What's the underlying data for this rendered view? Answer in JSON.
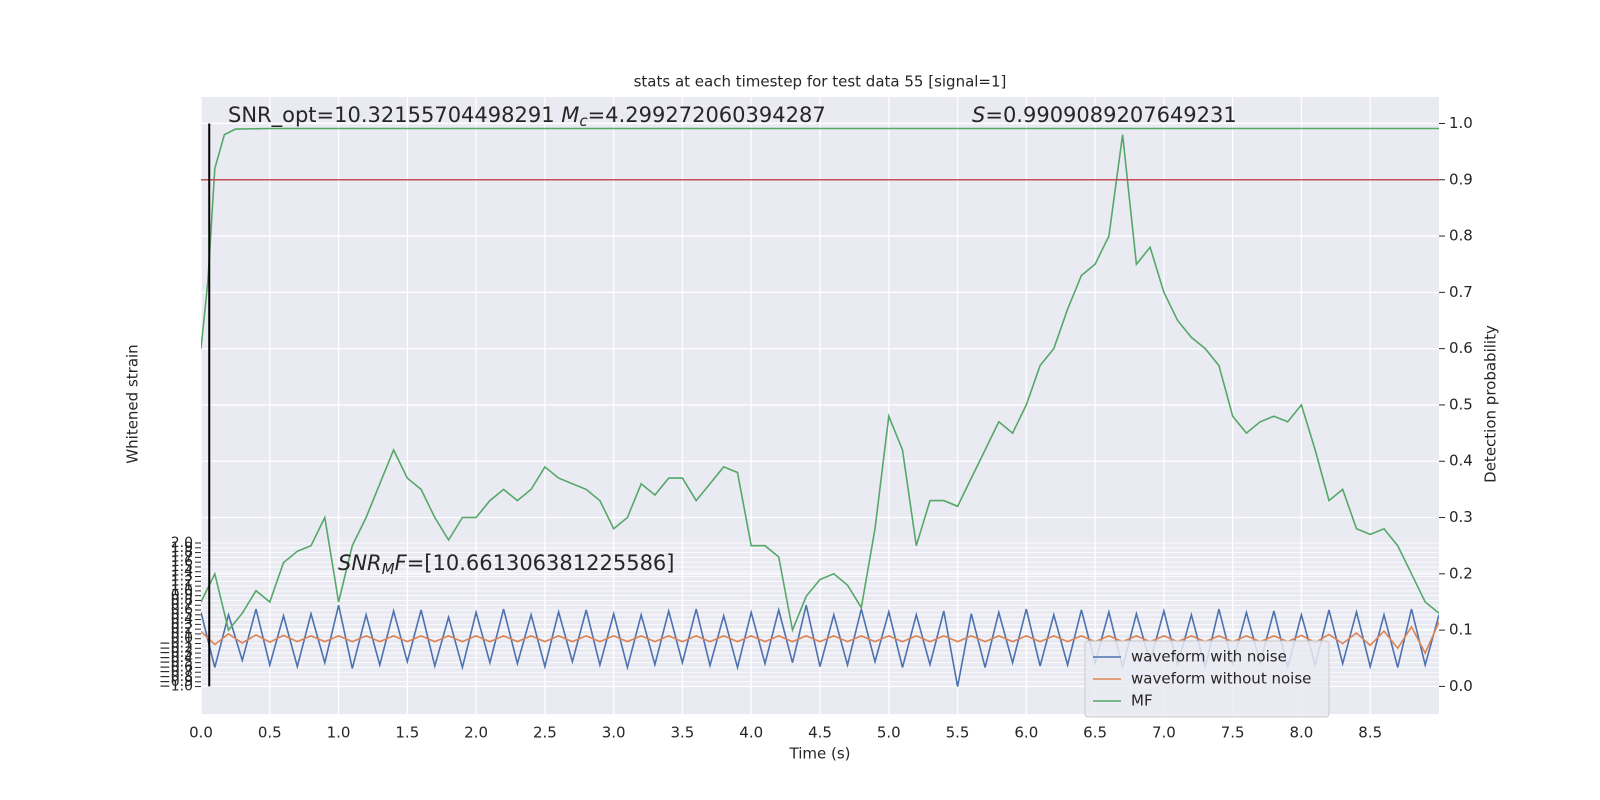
{
  "chart_data": {
    "type": "line",
    "title": "stats at each timestep for test data 55 [signal=1]",
    "xlabel": "Time (s)",
    "ylabel": "Whitened strain",
    "y2label": "Detection probability",
    "annotations": [
      {
        "parts": [
          {
            "text": "SNR_opt=10.32155704498291 "
          },
          {
            "text": "M",
            "style": "italic"
          },
          {
            "text": "c",
            "style": "sub"
          },
          {
            "text": "=4.299272060394287"
          }
        ]
      },
      {
        "parts": [
          {
            "text": "S",
            "style": "italic"
          },
          {
            "text": "=0.9909089207649231"
          }
        ]
      },
      {
        "parts": [
          {
            "text": "SNR",
            "style": "italic"
          },
          {
            "text": "M",
            "style": "sub"
          },
          {
            "text": "F",
            "style": "italic"
          },
          {
            "text": "=[10.661306381225586]"
          }
        ]
      }
    ],
    "x": [
      0.0,
      0.1,
      0.2,
      0.3,
      0.4,
      0.5,
      0.6,
      0.7,
      0.8,
      0.9,
      1.0,
      1.1,
      1.2,
      1.3,
      1.4,
      1.5,
      1.6,
      1.7,
      1.8,
      1.9,
      2.0,
      2.1,
      2.2,
      2.3,
      2.4,
      2.5,
      2.6,
      2.7,
      2.8,
      2.9,
      3.0,
      3.1,
      3.2,
      3.3,
      3.4,
      3.5,
      3.6,
      3.7,
      3.8,
      3.9,
      4.0,
      4.1,
      4.2,
      4.3,
      4.4,
      4.5,
      4.6,
      4.7,
      4.8,
      4.9,
      5.0,
      5.1,
      5.2,
      5.3,
      5.4,
      5.5,
      5.6,
      5.7,
      5.8,
      5.9,
      6.0,
      6.1,
      6.2,
      6.3,
      6.4,
      6.5,
      6.6,
      6.7,
      6.8,
      6.9,
      7.0,
      7.1,
      7.2,
      7.3,
      7.4,
      7.5,
      7.6,
      7.7,
      7.8,
      7.9,
      8.0,
      8.1,
      8.2,
      8.3,
      8.4,
      8.5,
      8.6,
      8.7,
      8.8,
      8.9,
      9.0
    ],
    "series": [
      {
        "name": "waveform with noise",
        "color": "#4c72b0",
        "values": [
          0.55,
          -0.6,
          0.5,
          -0.45,
          0.62,
          -0.55,
          0.48,
          -0.58,
          0.52,
          -0.5,
          0.7,
          -0.62,
          0.5,
          -0.55,
          0.58,
          -0.48,
          0.6,
          -0.57,
          0.45,
          -0.6,
          0.55,
          -0.5,
          0.62,
          -0.52,
          0.5,
          -0.58,
          0.56,
          -0.48,
          0.6,
          -0.55,
          0.52,
          -0.6,
          0.5,
          -0.54,
          0.58,
          -0.5,
          0.62,
          -0.56,
          0.48,
          -0.6,
          0.55,
          -0.52,
          0.6,
          -0.5,
          0.7,
          -0.58,
          0.5,
          -0.55,
          0.62,
          -0.48,
          0.56,
          -0.6,
          0.5,
          -0.54,
          0.58,
          -1.0,
          0.52,
          -0.6,
          0.55,
          -0.5,
          0.62,
          -0.57,
          0.5,
          -0.55,
          0.6,
          -0.5,
          0.56,
          -0.6,
          0.52,
          -0.48,
          0.58,
          -0.55,
          0.5,
          -0.6,
          0.62,
          -0.52,
          0.55,
          -0.5,
          0.58,
          -0.6,
          0.5,
          -0.55,
          0.6,
          -0.52,
          0.56,
          -0.58,
          0.5,
          -0.6,
          0.62,
          -0.55,
          0.5
        ]
      },
      {
        "name": "waveform without noise",
        "color": "#dd8452",
        "values": [
          0.15,
          -0.12,
          0.1,
          -0.09,
          0.08,
          -0.07,
          0.07,
          -0.06,
          0.06,
          -0.06,
          0.06,
          -0.06,
          0.06,
          -0.06,
          0.06,
          -0.06,
          0.06,
          -0.06,
          0.06,
          -0.06,
          0.06,
          -0.06,
          0.06,
          -0.06,
          0.06,
          -0.06,
          0.06,
          -0.06,
          0.06,
          -0.06,
          0.06,
          -0.06,
          0.06,
          -0.06,
          0.06,
          -0.06,
          0.06,
          -0.06,
          0.06,
          -0.06,
          0.06,
          -0.06,
          0.06,
          -0.06,
          0.06,
          -0.06,
          0.06,
          -0.06,
          0.06,
          -0.06,
          0.06,
          -0.06,
          0.06,
          -0.06,
          0.06,
          -0.06,
          0.06,
          -0.06,
          0.06,
          -0.06,
          0.06,
          -0.06,
          0.06,
          -0.06,
          0.06,
          -0.06,
          0.06,
          -0.06,
          0.06,
          -0.06,
          0.06,
          -0.06,
          0.06,
          -0.06,
          0.06,
          -0.06,
          0.06,
          -0.06,
          0.06,
          -0.06,
          0.07,
          -0.08,
          0.09,
          -0.1,
          0.12,
          -0.14,
          0.16,
          -0.2,
          0.25,
          -0.3,
          0.35
        ]
      },
      {
        "name": "MF",
        "color": "#55a868",
        "axis": "y2",
        "values": [
          0.15,
          0.2,
          0.1,
          0.13,
          0.17,
          0.15,
          0.22,
          0.24,
          0.25,
          0.3,
          0.15,
          0.25,
          0.3,
          0.36,
          0.42,
          0.37,
          0.35,
          0.3,
          0.26,
          0.3,
          0.3,
          0.33,
          0.35,
          0.33,
          0.35,
          0.39,
          0.37,
          0.36,
          0.35,
          0.33,
          0.28,
          0.3,
          0.36,
          0.34,
          0.37,
          0.37,
          0.33,
          0.36,
          0.39,
          0.38,
          0.25,
          0.25,
          0.23,
          0.1,
          0.16,
          0.19,
          0.2,
          0.18,
          0.14,
          0.28,
          0.48,
          0.42,
          0.25,
          0.33,
          0.33,
          0.32,
          0.37,
          0.42,
          0.47,
          0.45,
          0.5,
          0.57,
          0.6,
          0.67,
          0.73,
          0.75,
          0.8,
          0.98,
          0.75,
          0.78,
          0.7,
          0.65,
          0.62,
          0.6,
          0.57,
          0.48,
          0.45,
          0.47,
          0.48,
          0.47,
          0.5,
          0.42,
          0.33,
          0.35,
          0.28,
          0.27,
          0.28,
          0.25,
          0.2,
          0.15,
          0.13
        ]
      },
      {
        "color": "#55a868",
        "axis": "y2",
        "x": [
          0.0,
          0.05,
          0.1,
          0.17,
          0.25,
          0.5,
          9.0
        ],
        "values": [
          0.6,
          0.72,
          0.92,
          0.98,
          0.99,
          0.991,
          0.991
        ]
      }
    ],
    "hlines": [
      {
        "value": 0.9,
        "color": "#c44e52",
        "axis": "y2"
      }
    ],
    "vlines": [
      {
        "value": 0.06,
        "color": "#000000",
        "span": [
          0,
          1
        ]
      }
    ],
    "xlim": [
      0,
      9.0
    ],
    "xticks": [
      {
        "value": 0,
        "label": "0.0"
      },
      {
        "value": 0.5,
        "label": "0.5"
      },
      {
        "value": 1,
        "label": "1.0"
      },
      {
        "value": 1.5,
        "label": "1.5"
      },
      {
        "value": 2,
        "label": "2.0"
      },
      {
        "value": 2.5,
        "label": "2.5"
      },
      {
        "value": 3,
        "label": "3.0"
      },
      {
        "value": 3.5,
        "label": "3.5"
      },
      {
        "value": 4,
        "label": "4.0"
      },
      {
        "value": 4.5,
        "label": "4.5"
      },
      {
        "value": 5,
        "label": "5.0"
      },
      {
        "value": 5.5,
        "label": "5.5"
      },
      {
        "value": 6,
        "label": "6.0"
      },
      {
        "value": 6.5,
        "label": "6.5"
      },
      {
        "value": 7,
        "label": "7.0"
      },
      {
        "value": 7.5,
        "label": "7.5"
      },
      {
        "value": 8,
        "label": "8.0"
      },
      {
        "value": 8.5,
        "label": "8.5"
      }
    ],
    "ylim": [
      -1.573,
      11.32
    ],
    "yticks": [
      {
        "value": -1.0,
        "label": "−1.0"
      },
      {
        "value": -0.9,
        "label": "−0.9"
      },
      {
        "value": -0.8,
        "label": "−0.8"
      },
      {
        "value": -0.7,
        "label": "−0.7"
      },
      {
        "value": -0.6,
        "label": "−0.6"
      },
      {
        "value": -0.5,
        "label": "−0.5"
      },
      {
        "value": -0.4,
        "label": "−0.4"
      },
      {
        "value": -0.3,
        "label": "−0.3"
      },
      {
        "value": -0.2,
        "label": "−0.2"
      },
      {
        "value": -0.1,
        "label": "−0.1"
      },
      {
        "value": 0,
        "label": "0.0"
      },
      {
        "value": 0.1,
        "label": "0.1"
      },
      {
        "value": 0.2,
        "label": "0.2"
      },
      {
        "value": 0.3,
        "label": "0.3"
      },
      {
        "value": 0.4,
        "label": "0.4"
      },
      {
        "value": 0.5,
        "label": "0.5"
      },
      {
        "value": 0.6,
        "label": "0.6"
      },
      {
        "value": 0.7,
        "label": "0.7"
      },
      {
        "value": 0.8,
        "label": "0.8"
      },
      {
        "value": 0.9,
        "label": "0.9"
      },
      {
        "value": 1,
        "label": "1.0"
      },
      {
        "value": 1.1,
        "label": "1.1"
      },
      {
        "value": 1.2,
        "label": "1.2"
      },
      {
        "value": 1.3,
        "label": "1.3"
      },
      {
        "value": 1.4,
        "label": "1.4"
      },
      {
        "value": 1.5,
        "label": "1.5"
      },
      {
        "value": 1.6,
        "label": "1.6"
      },
      {
        "value": 1.7,
        "label": "1.7"
      },
      {
        "value": 1.8,
        "label": "1.8"
      },
      {
        "value": 1.9,
        "label": "1.9"
      },
      {
        "value": 2,
        "label": "2.0"
      }
    ],
    "y2lim": [
      -0.049,
      1.047
    ],
    "y2ticks": [
      {
        "value": 0,
        "label": "0.0"
      },
      {
        "value": 0.1,
        "label": "0.1"
      },
      {
        "value": 0.2,
        "label": "0.2"
      },
      {
        "value": 0.3,
        "label": "0.3"
      },
      {
        "value": 0.4,
        "label": "0.4"
      },
      {
        "value": 0.5,
        "label": "0.5"
      },
      {
        "value": 0.6,
        "label": "0.6"
      },
      {
        "value": 0.7,
        "label": "0.7"
      },
      {
        "value": 0.8,
        "label": "0.8"
      },
      {
        "value": 0.9,
        "label": "0.9"
      },
      {
        "value": 1,
        "label": "1.0"
      }
    ],
    "grid": true,
    "legend": "lower right"
  }
}
